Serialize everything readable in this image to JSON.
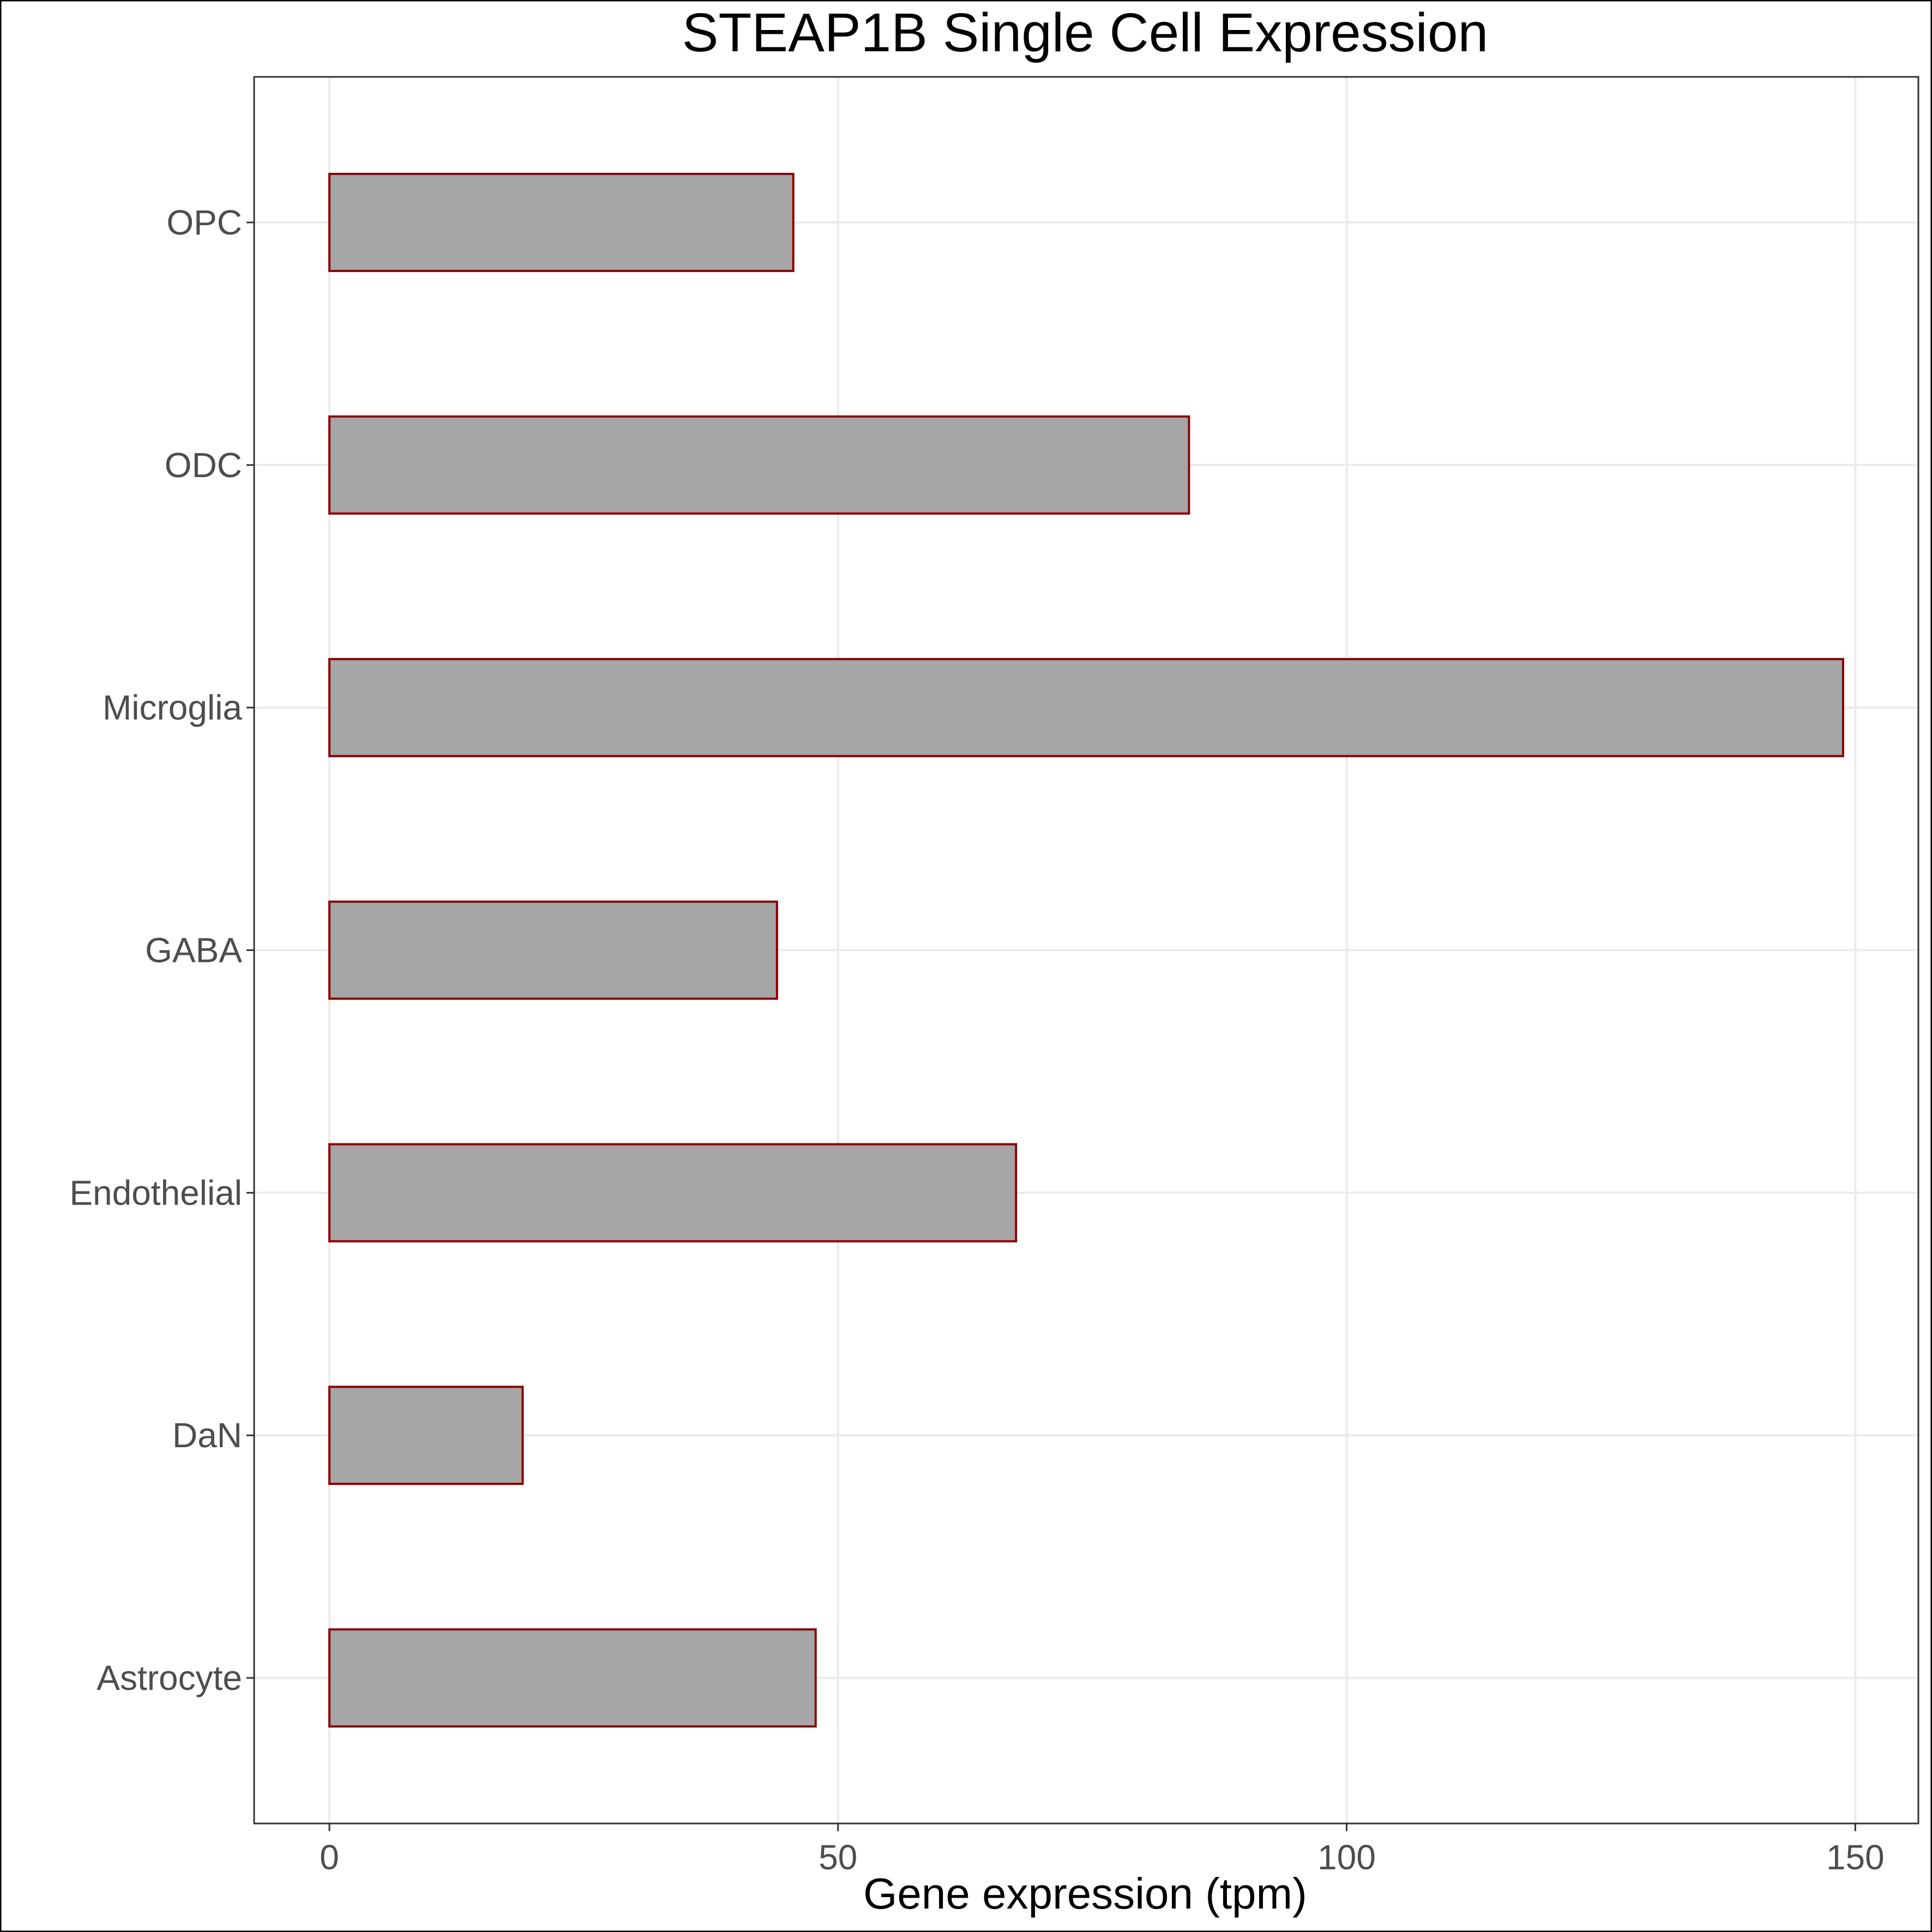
{
  "chart_data": {
    "type": "bar",
    "orientation": "horizontal",
    "title": "STEAP1B Single Cell Expression",
    "xlabel": "Gene expression (tpm)",
    "ylabel": "",
    "categories": [
      "Astrocyte",
      "DaN",
      "Endothelial",
      "GABA",
      "Microglia",
      "ODC",
      "OPC"
    ],
    "values": [
      47.8,
      19.0,
      67.5,
      44.0,
      148.8,
      84.5,
      45.6
    ],
    "xlim": [
      -7.4,
      156.2
    ],
    "xticks": [
      0,
      50,
      100,
      150
    ],
    "grid": true,
    "legend": "none",
    "colors": {
      "bar_fill": "#a6a6a6",
      "bar_outline": "#8b0000",
      "grid": "#ebebeb",
      "panel_border": "#333333",
      "tick_text": "#4d4d4d"
    }
  }
}
